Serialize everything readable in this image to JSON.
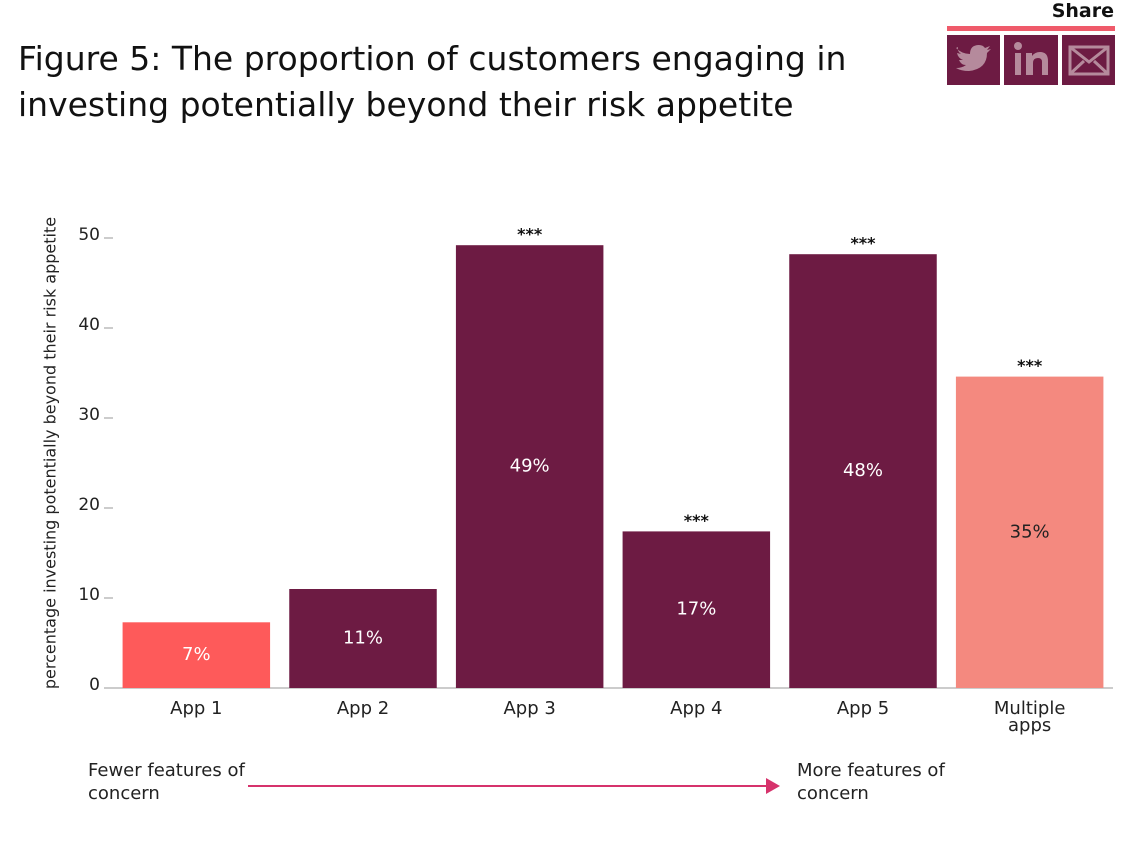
{
  "share": "Share",
  "chart_data": {
    "type": "bar",
    "title": "Figure 5: The proportion of customers engaging in investing potentially beyond their risk appetite",
    "y_label": "percentage investing potentially beyond their risk appetite",
    "categories": [
      "App 1",
      "App 2",
      "App 3",
      "App 4",
      "App 5",
      "Multiple apps"
    ],
    "values": [
      7.3,
      11,
      49.2,
      17.4,
      48.2,
      34.6
    ],
    "value_labels": [
      "7%",
      "11%",
      "49%",
      "17%",
      "48%",
      "35%"
    ],
    "annotations": [
      null,
      null,
      "***",
      "***",
      "***",
      "***"
    ],
    "colors": [
      "#fe5a5a",
      "#6d1b43",
      "#6d1b43",
      "#6d1b43",
      "#6d1b43",
      "#f4897f"
    ],
    "ylim": [
      0,
      50
    ],
    "yticks": [
      0,
      10,
      20,
      30,
      40,
      50
    ],
    "x_axis_notes": {
      "left": "Fewer features of concern",
      "right": "More features of concern"
    }
  }
}
